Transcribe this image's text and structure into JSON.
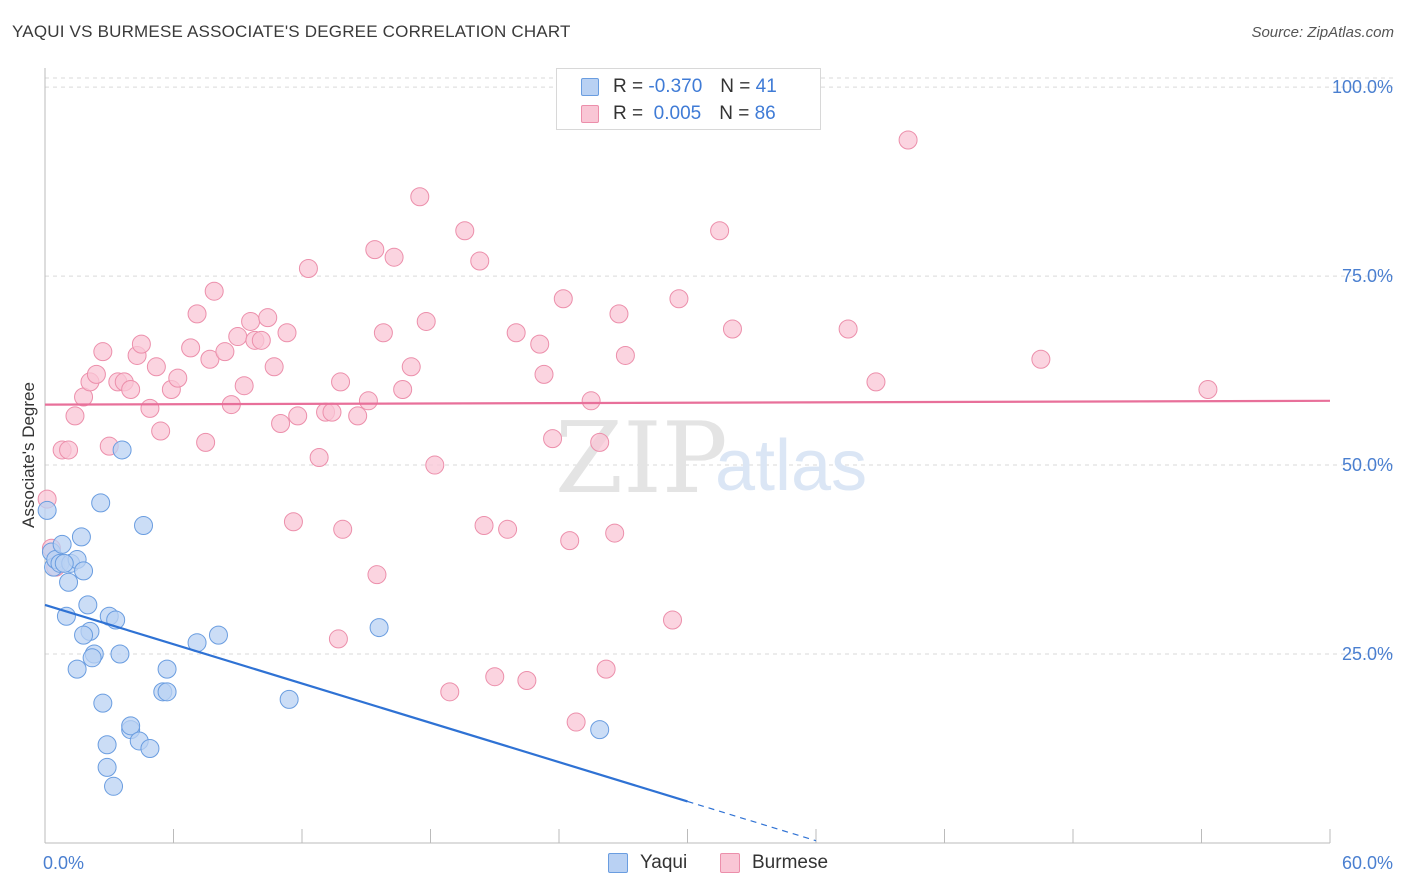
{
  "title": "YAQUI VS BURMESE ASSOCIATE'S DEGREE CORRELATION CHART",
  "source": "Source: ZipAtlas.com",
  "watermark": {
    "zip": "ZIP",
    "atlas": "atlas"
  },
  "legend": {
    "rows": [
      {
        "r_label": "R =",
        "r_value": "-0.370",
        "n_label": "N =",
        "n_value": "41"
      },
      {
        "r_label": "R =",
        "r_value": " 0.005",
        "n_label": "N =",
        "n_value": "86"
      }
    ]
  },
  "bottom_legend": {
    "yaqui": "Yaqui",
    "burmese": "Burmese"
  },
  "colors": {
    "yaqui_fill": "#b9d1f3",
    "yaqui_stroke": "#6a9de0",
    "yaqui_line": "#2f72d4",
    "burmese_fill": "#f9c6d5",
    "burmese_stroke": "#ec8fab",
    "burmese_line": "#e8709a",
    "grid": "#d9d9d9",
    "axis_label": "#4a7fd0"
  },
  "chart_data": {
    "type": "scatter",
    "title": "YAQUI VS BURMESE ASSOCIATE'S DEGREE CORRELATION CHART",
    "xlabel": "",
    "ylabel": "Associate's Degree",
    "xlim": [
      0,
      60
    ],
    "ylim": [
      0,
      102
    ],
    "x_tick_labels": [
      "0.0%",
      "60.0%"
    ],
    "y_ticks": [
      25,
      50,
      75,
      100
    ],
    "y_tick_labels": [
      "25.0%",
      "50.0%",
      "75.0%",
      "100.0%"
    ],
    "grid": true,
    "series": [
      {
        "name": "Yaqui",
        "R": -0.37,
        "N": 41,
        "trend": {
          "x0": 0,
          "y0": 31.5,
          "x1": 30,
          "y1": 5.5,
          "dash_to_x": 36,
          "dash_to_y": 0.3
        },
        "points": [
          [
            0.1,
            44.0
          ],
          [
            0.3,
            38.5
          ],
          [
            0.4,
            36.5
          ],
          [
            0.5,
            37.5
          ],
          [
            0.7,
            37.0
          ],
          [
            0.8,
            39.5
          ],
          [
            1.1,
            34.5
          ],
          [
            1.2,
            37.0
          ],
          [
            1.5,
            37.5
          ],
          [
            1.7,
            40.5
          ],
          [
            1.8,
            36.0
          ],
          [
            2.0,
            31.5
          ],
          [
            1.0,
            30.0
          ],
          [
            2.1,
            28.0
          ],
          [
            1.8,
            27.5
          ],
          [
            2.3,
            25.0
          ],
          [
            2.2,
            24.5
          ],
          [
            1.5,
            23.0
          ],
          [
            3.0,
            30.0
          ],
          [
            3.3,
            29.5
          ],
          [
            3.5,
            25.0
          ],
          [
            2.6,
            45.0
          ],
          [
            3.6,
            52.0
          ],
          [
            4.6,
            42.0
          ],
          [
            5.7,
            23.0
          ],
          [
            5.5,
            20.0
          ],
          [
            5.7,
            20.0
          ],
          [
            7.1,
            26.5
          ],
          [
            8.1,
            27.5
          ],
          [
            2.7,
            18.5
          ],
          [
            4.0,
            15.0
          ],
          [
            4.0,
            15.5
          ],
          [
            2.9,
            13.0
          ],
          [
            4.4,
            13.5
          ],
          [
            4.9,
            12.5
          ],
          [
            2.9,
            10.0
          ],
          [
            3.2,
            7.5
          ],
          [
            11.4,
            19.0
          ],
          [
            15.6,
            28.5
          ],
          [
            25.9,
            15.0
          ],
          [
            0.9,
            37.0
          ]
        ]
      },
      {
        "name": "Burmese",
        "R": 0.005,
        "N": 86,
        "trend": {
          "x0": 0,
          "y0": 58.0,
          "x1": 60,
          "y1": 58.5
        },
        "points": [
          [
            0.1,
            45.5
          ],
          [
            0.3,
            39.0
          ],
          [
            0.5,
            36.5
          ],
          [
            0.8,
            52.0
          ],
          [
            1.1,
            52.0
          ],
          [
            1.4,
            56.5
          ],
          [
            1.8,
            59.0
          ],
          [
            2.1,
            61.0
          ],
          [
            2.4,
            62.0
          ],
          [
            2.7,
            65.0
          ],
          [
            3.0,
            52.5
          ],
          [
            3.4,
            61.0
          ],
          [
            3.7,
            61.0
          ],
          [
            4.0,
            60.0
          ],
          [
            4.3,
            64.5
          ],
          [
            4.5,
            66.0
          ],
          [
            4.9,
            57.5
          ],
          [
            5.2,
            63.0
          ],
          [
            5.4,
            54.5
          ],
          [
            5.9,
            60.0
          ],
          [
            6.2,
            61.5
          ],
          [
            6.8,
            65.5
          ],
          [
            7.1,
            70.0
          ],
          [
            7.5,
            53.0
          ],
          [
            7.7,
            64.0
          ],
          [
            7.9,
            73.0
          ],
          [
            8.4,
            65.0
          ],
          [
            8.7,
            58.0
          ],
          [
            9.0,
            67.0
          ],
          [
            9.3,
            60.5
          ],
          [
            9.6,
            69.0
          ],
          [
            9.8,
            66.5
          ],
          [
            10.1,
            66.5
          ],
          [
            10.4,
            69.5
          ],
          [
            10.7,
            63.0
          ],
          [
            11.0,
            55.5
          ],
          [
            11.3,
            67.5
          ],
          [
            11.6,
            42.5
          ],
          [
            11.8,
            56.5
          ],
          [
            12.3,
            76.0
          ],
          [
            12.8,
            51.0
          ],
          [
            13.1,
            57.0
          ],
          [
            13.4,
            57.0
          ],
          [
            13.8,
            61.0
          ],
          [
            13.9,
            41.5
          ],
          [
            14.6,
            56.5
          ],
          [
            15.1,
            58.5
          ],
          [
            15.4,
            78.5
          ],
          [
            15.5,
            35.5
          ],
          [
            15.8,
            67.5
          ],
          [
            16.3,
            77.5
          ],
          [
            16.7,
            60.0
          ],
          [
            17.1,
            63.0
          ],
          [
            17.5,
            85.5
          ],
          [
            17.8,
            69.0
          ],
          [
            18.2,
            50.0
          ],
          [
            13.7,
            27.0
          ],
          [
            18.9,
            20.0
          ],
          [
            19.6,
            81.0
          ],
          [
            20.3,
            77.0
          ],
          [
            20.5,
            42.0
          ],
          [
            21.0,
            22.0
          ],
          [
            21.6,
            41.5
          ],
          [
            22.0,
            67.5
          ],
          [
            22.5,
            21.5
          ],
          [
            23.1,
            66.0
          ],
          [
            23.3,
            62.0
          ],
          [
            23.7,
            53.5
          ],
          [
            24.2,
            72.0
          ],
          [
            24.5,
            40.0
          ],
          [
            24.8,
            16.0
          ],
          [
            25.5,
            58.5
          ],
          [
            25.9,
            53.0
          ],
          [
            26.2,
            23.0
          ],
          [
            26.6,
            41.0
          ],
          [
            26.8,
            70.0
          ],
          [
            27.1,
            64.5
          ],
          [
            29.3,
            29.5
          ],
          [
            29.6,
            72.0
          ],
          [
            31.5,
            81.0
          ],
          [
            32.1,
            68.0
          ],
          [
            37.5,
            68.0
          ],
          [
            38.8,
            61.0
          ],
          [
            40.3,
            93.0
          ],
          [
            46.5,
            64.0
          ],
          [
            54.3,
            60.0
          ]
        ]
      }
    ]
  }
}
